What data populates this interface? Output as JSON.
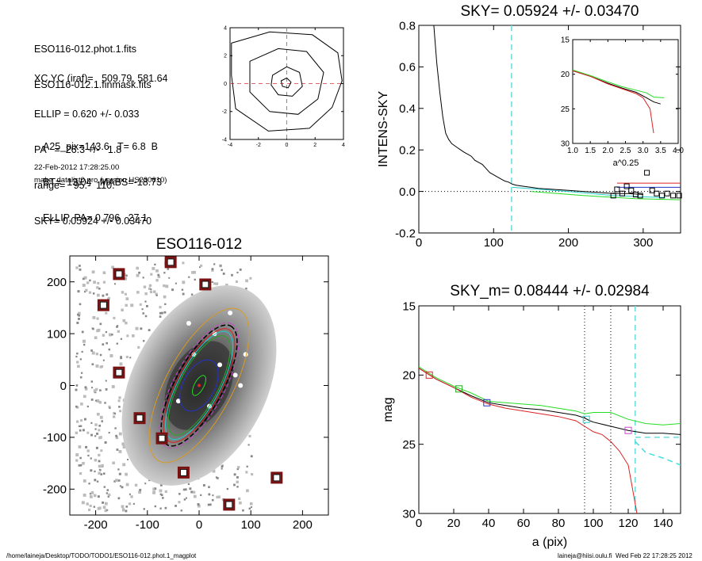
{
  "info": {
    "lines_a": [
      "ESO116-012.phot.1.fits",
      "ESO116-012.1.finmask.fits"
    ],
    "lines_b": [
      "XC,YC (iraf)=   509.79, 581.64",
      "ELLIP = 0.620 +/- 0.033",
      "PA   =  26.3 +/-   1.8",
      "range=   95.-  110.",
      "SKY= 0.05924 +/- 0.03470"
    ],
    "lines_c": [
      "A25_pix=143.6   T= 6.8  B",
      "BT=  13.04   MABS=-18.73",
      "ELLIP, PA= 0.796   27.1"
    ],
    "date": "22-Feb-2012 17:28:25.00",
    "program": "make_datalist0.pro (version HS230610)"
  },
  "footer": {
    "path": "/home/laineja/Desktop/TODO/TODO1/ESO116-012.phot.1_magplot",
    "user": "laineja@hiisi.oulu.fi  Wed Feb 22 17:28:25 2012"
  },
  "chart_data": [
    {
      "type": "contour",
      "xlim": [
        -4,
        4
      ],
      "ylim": [
        -4,
        4
      ],
      "xticks": [
        "-4",
        "-2",
        "0",
        "2",
        "4"
      ],
      "yticks": [
        "-4",
        "-2",
        "0",
        "2",
        "4"
      ]
    },
    {
      "type": "line",
      "title": "SKY= 0.05924 +/- 0.03470",
      "ylabel": "INTENS-SKY",
      "xlim": [
        0,
        350
      ],
      "ylim": [
        -0.2,
        0.8
      ],
      "xticks": [
        "0",
        "100",
        "200",
        "300"
      ],
      "yticks": [
        "-0.2",
        "0.0",
        "0.2",
        "0.4",
        "0.6",
        "0.8"
      ],
      "vline_x": 124,
      "series": [
        {
          "x": [
            20,
            24,
            28,
            32,
            36,
            40,
            44,
            48,
            52,
            56,
            60,
            65,
            70,
            75,
            80,
            85,
            90,
            95,
            100,
            105,
            110,
            115,
            120,
            125,
            130,
            140,
            150,
            160,
            180,
            200,
            220,
            240,
            260,
            280,
            300
          ],
          "y": [
            0.8,
            0.62,
            0.48,
            0.36,
            0.28,
            0.25,
            0.23,
            0.22,
            0.21,
            0.2,
            0.19,
            0.18,
            0.17,
            0.15,
            0.14,
            0.13,
            0.11,
            0.09,
            0.08,
            0.07,
            0.06,
            0.05,
            0.045,
            0.035,
            0.03,
            0.025,
            0.02,
            0.015,
            0.01,
            0.005,
            0.0,
            -0.005,
            -0.01,
            -0.01,
            -0.015
          ]
        }
      ],
      "sky_points": {
        "x": [
          260,
          265,
          272,
          278,
          284,
          290,
          296,
          305,
          312,
          318,
          325,
          332,
          340,
          348
        ],
        "y": [
          -0.02,
          0.01,
          -0.01,
          0.025,
          0.005,
          -0.015,
          -0.02,
          0.09,
          0.005,
          -0.01,
          -0.02,
          -0.01,
          -0.02,
          -0.02
        ]
      },
      "inset": {
        "xlabel": "a^0.25",
        "xlim": [
          1.0,
          4.0
        ],
        "ylim": [
          30,
          15
        ],
        "xticks": [
          "1.0",
          "1.5",
          "2.0",
          "2.5",
          "3.0",
          "3.5",
          "4.0"
        ],
        "yticks": [
          "15",
          "20",
          "25",
          "30"
        ]
      }
    },
    {
      "type": "image",
      "title": "ESO116-012",
      "xlim": [
        -250,
        250
      ],
      "ylim": [
        -250,
        250
      ],
      "xticks": [
        "-200",
        "-100",
        "0",
        "100",
        "200"
      ],
      "yticks": [
        "-200",
        "-100",
        "0",
        "100",
        "200"
      ],
      "sky_boxes": [
        [
          -155,
          215
        ],
        [
          -55,
          238
        ],
        [
          12,
          195
        ],
        [
          -185,
          155
        ],
        [
          -155,
          25
        ],
        [
          -115,
          -63
        ],
        [
          -72,
          -102
        ],
        [
          -30,
          -168
        ],
        [
          150,
          -178
        ],
        [
          58,
          -230
        ]
      ]
    },
    {
      "type": "line",
      "title": "SKY_m=  0.08444 +/- 0.02984",
      "xlabel": "a (pix)",
      "ylabel": "mag",
      "xlim": [
        0,
        150
      ],
      "ylim": [
        30,
        15
      ],
      "xticks": [
        "0",
        "20",
        "40",
        "60",
        "80",
        "100",
        "120",
        "140"
      ],
      "yticks": [
        "15",
        "20",
        "25",
        "30"
      ],
      "vlines": [
        95,
        110
      ],
      "vline_dashed": 124,
      "series": [
        {
          "color": "#000000",
          "x": [
            0,
            10,
            20,
            30,
            40,
            50,
            60,
            70,
            80,
            90,
            95,
            98,
            100,
            110,
            120,
            130,
            140,
            150
          ],
          "y": [
            19.5,
            20.3,
            20.9,
            21.5,
            22.0,
            22.2,
            22.4,
            22.5,
            22.7,
            22.9,
            23.1,
            23.3,
            23.4,
            23.7,
            24.0,
            24.2,
            24.2,
            24.3
          ]
        },
        {
          "color": "#22dd22",
          "x": [
            0,
            10,
            20,
            30,
            40,
            50,
            60,
            70,
            80,
            90,
            95,
            100,
            110,
            120,
            130,
            140,
            150
          ],
          "y": [
            19.4,
            20.2,
            20.8,
            21.3,
            21.9,
            22.0,
            22.1,
            22.2,
            22.4,
            22.6,
            22.8,
            22.7,
            22.7,
            23.2,
            23.5,
            23.6,
            23.5
          ]
        },
        {
          "color": "#dd2222",
          "x": [
            0,
            10,
            20,
            30,
            40,
            50,
            60,
            70,
            80,
            90,
            95,
            100,
            105,
            110,
            115,
            120,
            125
          ],
          "y": [
            19.5,
            20.3,
            20.9,
            21.6,
            22.1,
            22.4,
            22.6,
            22.8,
            23.0,
            23.3,
            23.7,
            24.1,
            24.3,
            24.8,
            25.5,
            26.5,
            30.0
          ]
        },
        {
          "color": "#44dddd",
          "x": [
            124,
            130,
            140,
            150
          ],
          "y": [
            24.8,
            25.6,
            26.0,
            26.5
          ]
        }
      ],
      "markers": [
        {
          "x": 6,
          "y": 20.0,
          "color": "#dd2222"
        },
        {
          "x": 23,
          "y": 21.0,
          "color": "#22aa22"
        },
        {
          "x": 39,
          "y": 22.0,
          "color": "#2233cc"
        },
        {
          "x": 96,
          "y": 23.2,
          "color": "#22cccc"
        },
        {
          "x": 120,
          "y": 24.0,
          "color": "#cc44cc"
        }
      ]
    }
  ]
}
